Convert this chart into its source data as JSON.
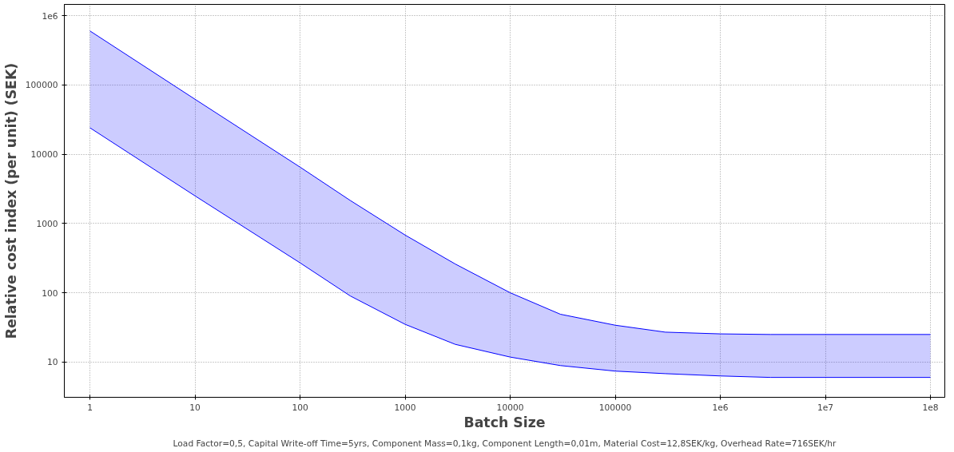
{
  "chart_data": {
    "type": "line",
    "xlabel": "Batch Size",
    "ylabel": "Relative cost index (per unit) (SEK)",
    "log": "xy",
    "grid": true,
    "x": [
      1,
      10,
      100,
      300,
      1000,
      3000,
      10000,
      30000,
      100000,
      300000,
      1000000,
      3000000,
      100000000
    ],
    "series": [
      {
        "color": "#0000ff",
        "values": [
          600000,
          62000,
          6500,
          2150,
          680,
          260,
          100,
          49,
          34,
          27,
          25.5,
          25,
          25
        ],
        "upper": [
          600000,
          62000,
          6500,
          2150,
          680,
          260,
          100,
          49,
          34,
          27,
          25.5,
          25,
          25
        ],
        "lower": [
          24000,
          2500,
          270,
          90,
          35,
          18,
          11.8,
          8.9,
          7.4,
          6.8,
          6.3,
          6,
          6
        ]
      },
      {
        "color": "#0000ff",
        "values": [
          24000,
          2500,
          270,
          90,
          35,
          18,
          11.8,
          8.9,
          7.4,
          6.8,
          6.3,
          6,
          6
        ]
      }
    ],
    "xlim": [
      0.57,
      137000000
    ],
    "ylim": [
      3.1,
      1450000
    ],
    "xticks": [
      1,
      10,
      100,
      1000,
      10000,
      100000,
      {
        "value": 1000000,
        "label": "1e6"
      },
      {
        "value": 10000000,
        "label": "1e7"
      },
      {
        "value": 100000000,
        "label": "1e8"
      }
    ],
    "yticks": [
      10,
      100,
      1000,
      10000,
      100000,
      {
        "value": 1000000,
        "label": "1e6"
      }
    ],
    "annotations": [
      "Load Factor=0,5, Capital Write-off Time=5yrs, Component Mass=0,1kg, Component Length=0,01m, Material Cost=12,8SEK/kg, Overhead Rate=716SEK/hr"
    ]
  }
}
